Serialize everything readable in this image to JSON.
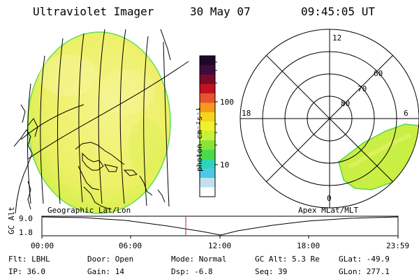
{
  "header": {
    "instrument": "Ultraviolet Imager",
    "date": "30 May 07",
    "time": "09:45:05 UT"
  },
  "colorbar": {
    "unit_label": "photon cm⁻²s⁻¹",
    "ticks": [
      "100",
      "10"
    ],
    "colors_top_to_bottom": [
      "#1a0a2a",
      "#3a0d3d",
      "#7a0a2a",
      "#c1121f",
      "#e8532e",
      "#f39a1a",
      "#f6d31e",
      "#eef22d",
      "#c6f03a",
      "#86e635",
      "#4bd94a",
      "#2fd4b8",
      "#4ec8e8",
      "#bfe3ee",
      "#ffffff"
    ]
  },
  "map_left": {
    "label": "Geographic Lat/Lon",
    "disk_color": "#f2f26a",
    "disk_edge": "#5fdc55"
  },
  "map_right": {
    "label": "Apex MLat/MLT",
    "mlt_labels": {
      "top": "12",
      "left": "18",
      "right": "6",
      "bottom": "0"
    },
    "mlat_labels": [
      "80",
      "70",
      "60"
    ]
  },
  "timeline": {
    "y_label": "GC Alt",
    "y_ticks": [
      "9.0",
      "1.8"
    ],
    "x_ticks": [
      "00:00",
      "06:00",
      "12:00",
      "18:00",
      "23:59"
    ],
    "marker_color": "#c81e1e"
  },
  "status": {
    "flt": "Flt: LBHL",
    "ip": "IP: 36.0",
    "door": "Door: Open",
    "gain": "Gain: 14",
    "mode": "Mode: Normal",
    "dsp": "Dsp:  -6.8",
    "gc_alt": "GC Alt: 5.3 Re",
    "seq": "Seq: 39",
    "glat": "GLat: -49.9",
    "glon": "GLon: 277.1"
  }
}
